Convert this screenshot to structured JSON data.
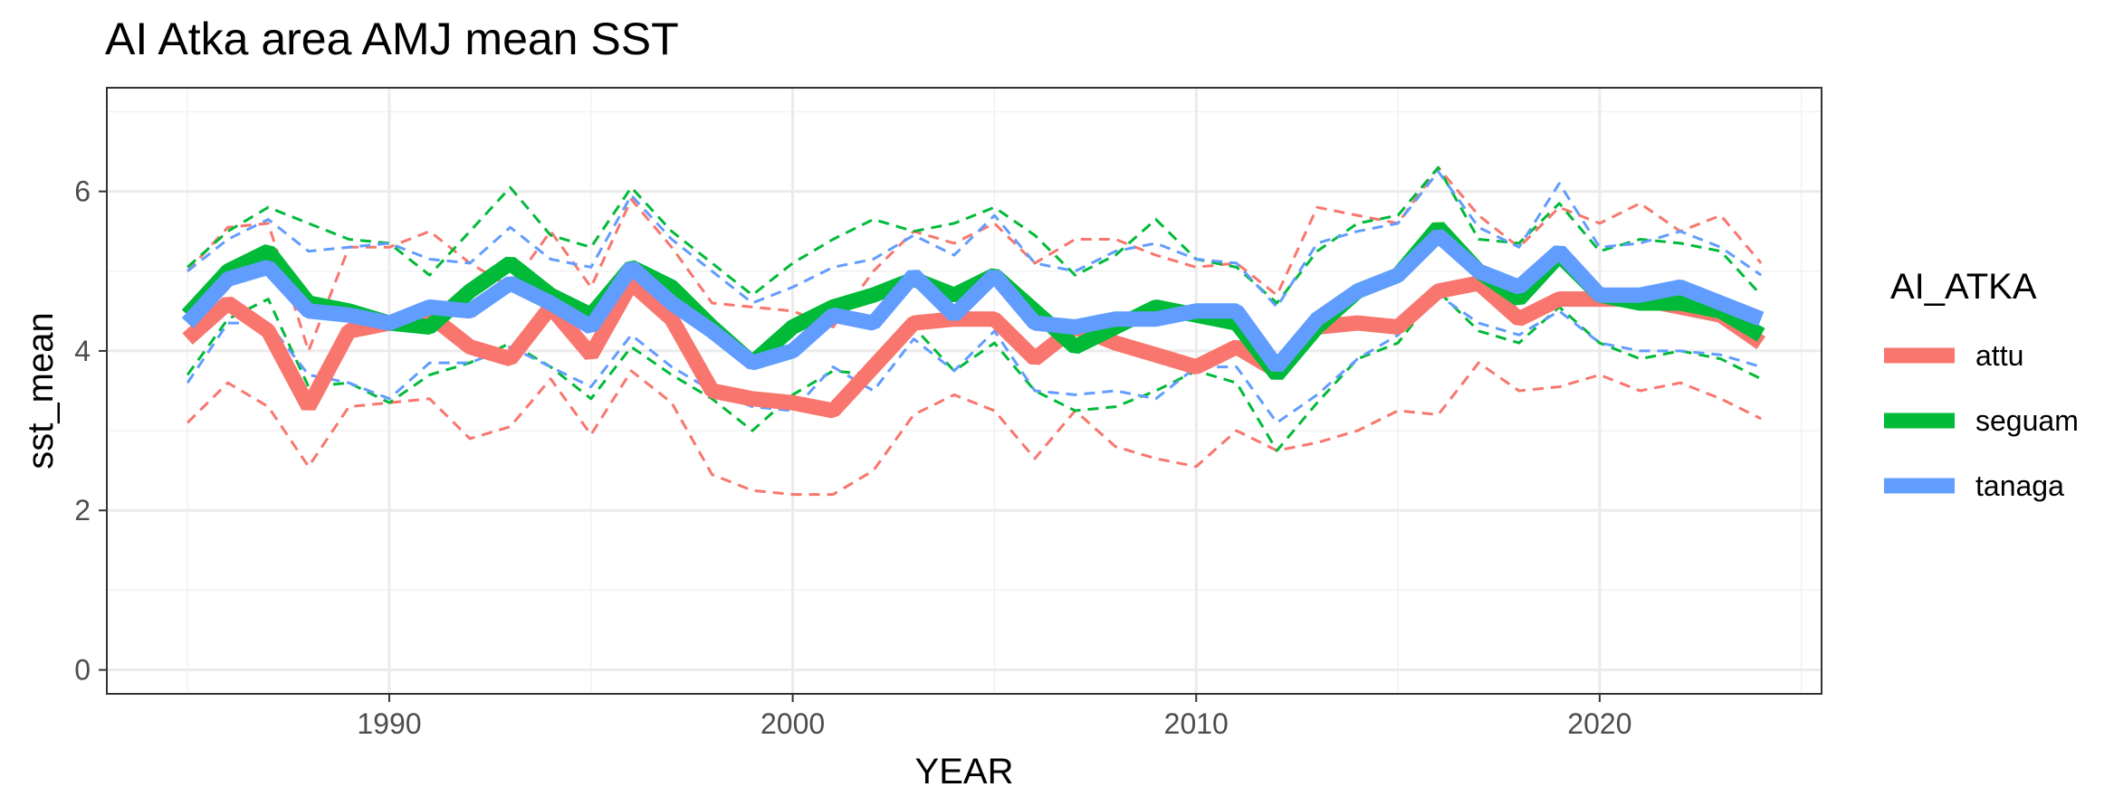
{
  "chart_data": {
    "type": "line",
    "title": "AI Atka area AMJ mean SST",
    "xlabel": "YEAR",
    "ylabel": "sst_mean",
    "xlim": [
      1983,
      2025.5
    ],
    "ylim": [
      -0.3,
      7.3
    ],
    "x_ticks": [
      1990,
      2000,
      2010,
      2020
    ],
    "y_ticks": [
      0,
      2,
      4,
      6
    ],
    "grid": true,
    "legend_title": "AI_ATKA",
    "legend_position": "right",
    "x": [
      1985,
      1986,
      1987,
      1988,
      1989,
      1990,
      1991,
      1992,
      1993,
      1994,
      1995,
      1996,
      1997,
      1998,
      1999,
      2000,
      2001,
      2002,
      2003,
      2004,
      2005,
      2006,
      2007,
      2008,
      2009,
      2010,
      2011,
      2012,
      2013,
      2014,
      2015,
      2016,
      2017,
      2018,
      2019,
      2020,
      2021,
      2022,
      2023,
      2024
    ],
    "series": [
      {
        "name": "attu",
        "color": "#F8766D",
        "values": [
          4.15,
          4.6,
          4.25,
          3.3,
          4.25,
          4.35,
          4.45,
          4.05,
          3.9,
          4.55,
          3.95,
          4.85,
          4.4,
          3.5,
          3.4,
          3.35,
          3.25,
          3.8,
          4.35,
          4.4,
          4.4,
          3.9,
          4.3,
          4.1,
          3.95,
          3.8,
          4.05,
          3.75,
          4.3,
          4.35,
          4.3,
          4.75,
          4.85,
          4.4,
          4.65,
          4.65,
          4.65,
          4.55,
          4.45,
          4.1
        ],
        "upper": [
          5.0,
          5.55,
          5.6,
          4.0,
          5.3,
          5.3,
          5.5,
          5.1,
          4.8,
          5.5,
          4.8,
          5.9,
          5.3,
          4.6,
          4.55,
          4.5,
          4.3,
          5.0,
          5.5,
          5.35,
          5.6,
          5.1,
          5.4,
          5.4,
          5.2,
          5.05,
          5.1,
          4.7,
          5.8,
          5.7,
          5.6,
          6.3,
          5.7,
          5.3,
          5.8,
          5.6,
          5.85,
          5.5,
          5.7,
          5.1
        ],
        "lower": [
          3.1,
          3.6,
          3.3,
          2.55,
          3.3,
          3.35,
          3.4,
          2.9,
          3.05,
          3.65,
          2.95,
          3.75,
          3.35,
          2.45,
          2.25,
          2.2,
          2.2,
          2.5,
          3.2,
          3.45,
          3.25,
          2.65,
          3.25,
          2.8,
          2.65,
          2.55,
          3.0,
          2.75,
          2.85,
          3.0,
          3.25,
          3.2,
          3.85,
          3.5,
          3.55,
          3.7,
          3.5,
          3.6,
          3.4,
          3.15
        ]
      },
      {
        "name": "seguam",
        "color": "#00BA38",
        "values": [
          4.45,
          5.0,
          5.25,
          4.6,
          4.5,
          4.35,
          4.3,
          4.75,
          5.1,
          4.7,
          4.45,
          5.05,
          4.8,
          4.3,
          3.85,
          4.3,
          4.55,
          4.7,
          4.9,
          4.7,
          4.95,
          4.5,
          4.05,
          4.3,
          4.55,
          4.45,
          4.35,
          3.7,
          4.3,
          4.75,
          4.95,
          5.55,
          5.0,
          4.65,
          5.2,
          4.7,
          4.6,
          4.6,
          4.5,
          4.2
        ],
        "upper": [
          5.05,
          5.5,
          5.8,
          5.6,
          5.4,
          5.35,
          4.95,
          5.5,
          6.05,
          5.45,
          5.3,
          6.05,
          5.5,
          5.1,
          4.7,
          5.1,
          5.4,
          5.65,
          5.5,
          5.6,
          5.8,
          5.45,
          4.95,
          5.2,
          5.65,
          5.15,
          5.05,
          4.6,
          5.25,
          5.6,
          5.7,
          6.3,
          5.4,
          5.35,
          5.85,
          5.25,
          5.4,
          5.35,
          5.25,
          4.7
        ],
        "lower": [
          3.7,
          4.4,
          4.65,
          3.55,
          3.6,
          3.35,
          3.7,
          3.85,
          4.1,
          3.8,
          3.4,
          4.05,
          3.7,
          3.4,
          3.0,
          3.45,
          3.75,
          3.7,
          4.3,
          3.75,
          4.1,
          3.5,
          3.25,
          3.3,
          3.5,
          3.75,
          3.6,
          2.75,
          3.35,
          3.9,
          4.1,
          4.75,
          4.25,
          4.1,
          4.55,
          4.1,
          3.9,
          4.0,
          3.9,
          3.65
        ]
      },
      {
        "name": "tanaga",
        "color": "#619CFF",
        "values": [
          4.35,
          4.9,
          5.05,
          4.5,
          4.45,
          4.35,
          4.55,
          4.5,
          4.85,
          4.6,
          4.3,
          5.05,
          4.6,
          4.25,
          3.85,
          4.0,
          4.45,
          4.35,
          4.95,
          4.45,
          4.95,
          4.35,
          4.3,
          4.4,
          4.4,
          4.5,
          4.5,
          3.8,
          4.4,
          4.75,
          4.95,
          5.45,
          5.0,
          4.8,
          5.25,
          4.7,
          4.7,
          4.8,
          4.6,
          4.4
        ],
        "upper": [
          5.0,
          5.4,
          5.65,
          5.25,
          5.3,
          5.35,
          5.15,
          5.1,
          5.55,
          5.15,
          5.05,
          5.95,
          5.4,
          5.0,
          4.6,
          4.8,
          5.05,
          5.15,
          5.45,
          5.2,
          5.7,
          5.1,
          5.0,
          5.25,
          5.35,
          5.15,
          5.1,
          4.55,
          5.35,
          5.5,
          5.6,
          6.25,
          5.55,
          5.3,
          6.1,
          5.3,
          5.35,
          5.5,
          5.3,
          4.95
        ],
        "lower": [
          3.6,
          4.35,
          4.35,
          3.7,
          3.6,
          3.4,
          3.85,
          3.85,
          4.05,
          3.8,
          3.55,
          4.2,
          3.8,
          3.5,
          3.3,
          3.25,
          3.8,
          3.5,
          4.15,
          3.75,
          4.25,
          3.5,
          3.45,
          3.5,
          3.4,
          3.8,
          3.8,
          3.1,
          3.45,
          3.9,
          4.2,
          4.7,
          4.35,
          4.2,
          4.5,
          4.1,
          4.0,
          4.0,
          3.95,
          3.8
        ]
      }
    ]
  }
}
